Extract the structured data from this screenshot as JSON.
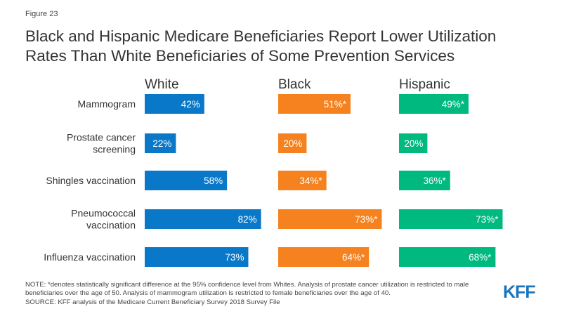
{
  "figure_label": "Figure 23",
  "title_lines": [
    "Black and Hispanic Medicare Beneficiaries Report Lower Utilization",
    "Rates Than White Beneficiaries of Some Prevention Services"
  ],
  "note": "NOTE: *denotes statistically significant difference at the 95% confidence level from Whites. Analysis of prostate cancer utilization is restricted to male beneficiaries over the age of 50. Analysis of mammogram utilization is restricted to female beneficiaries over the age of 40.",
  "source": "SOURCE: KFF analysis of the Medicare Current Beneficiary Survey 2018 Survey File",
  "logo_text": "KFF",
  "colors": {
    "White": "#0a78c9",
    "Black": "#f5821f",
    "Hispanic": "#00b97f"
  },
  "chart_data": {
    "type": "bar",
    "orientation": "horizontal",
    "layout": "small-multiples",
    "categories": [
      [
        "Mammogram"
      ],
      [
        "Prostate cancer",
        "screening"
      ],
      [
        "Shingles vaccination"
      ],
      [
        "Pneumococcal",
        "vaccination"
      ],
      [
        "Influenza vaccination"
      ]
    ],
    "series": [
      {
        "name": "White",
        "values": [
          42,
          22,
          58,
          82,
          73
        ],
        "labels": [
          "42%",
          "22%",
          "58%",
          "82%",
          "73%"
        ]
      },
      {
        "name": "Black",
        "values": [
          51,
          20,
          34,
          73,
          64
        ],
        "labels": [
          "51%*",
          "20%",
          "34%*",
          "73%*",
          "64%*"
        ]
      },
      {
        "name": "Hispanic",
        "values": [
          49,
          20,
          36,
          73,
          68
        ],
        "labels": [
          "49%*",
          "20%",
          "36%*",
          "73%*",
          "68%*"
        ]
      }
    ],
    "xlim": [
      0,
      100
    ],
    "grid": false,
    "legend": "none"
  }
}
